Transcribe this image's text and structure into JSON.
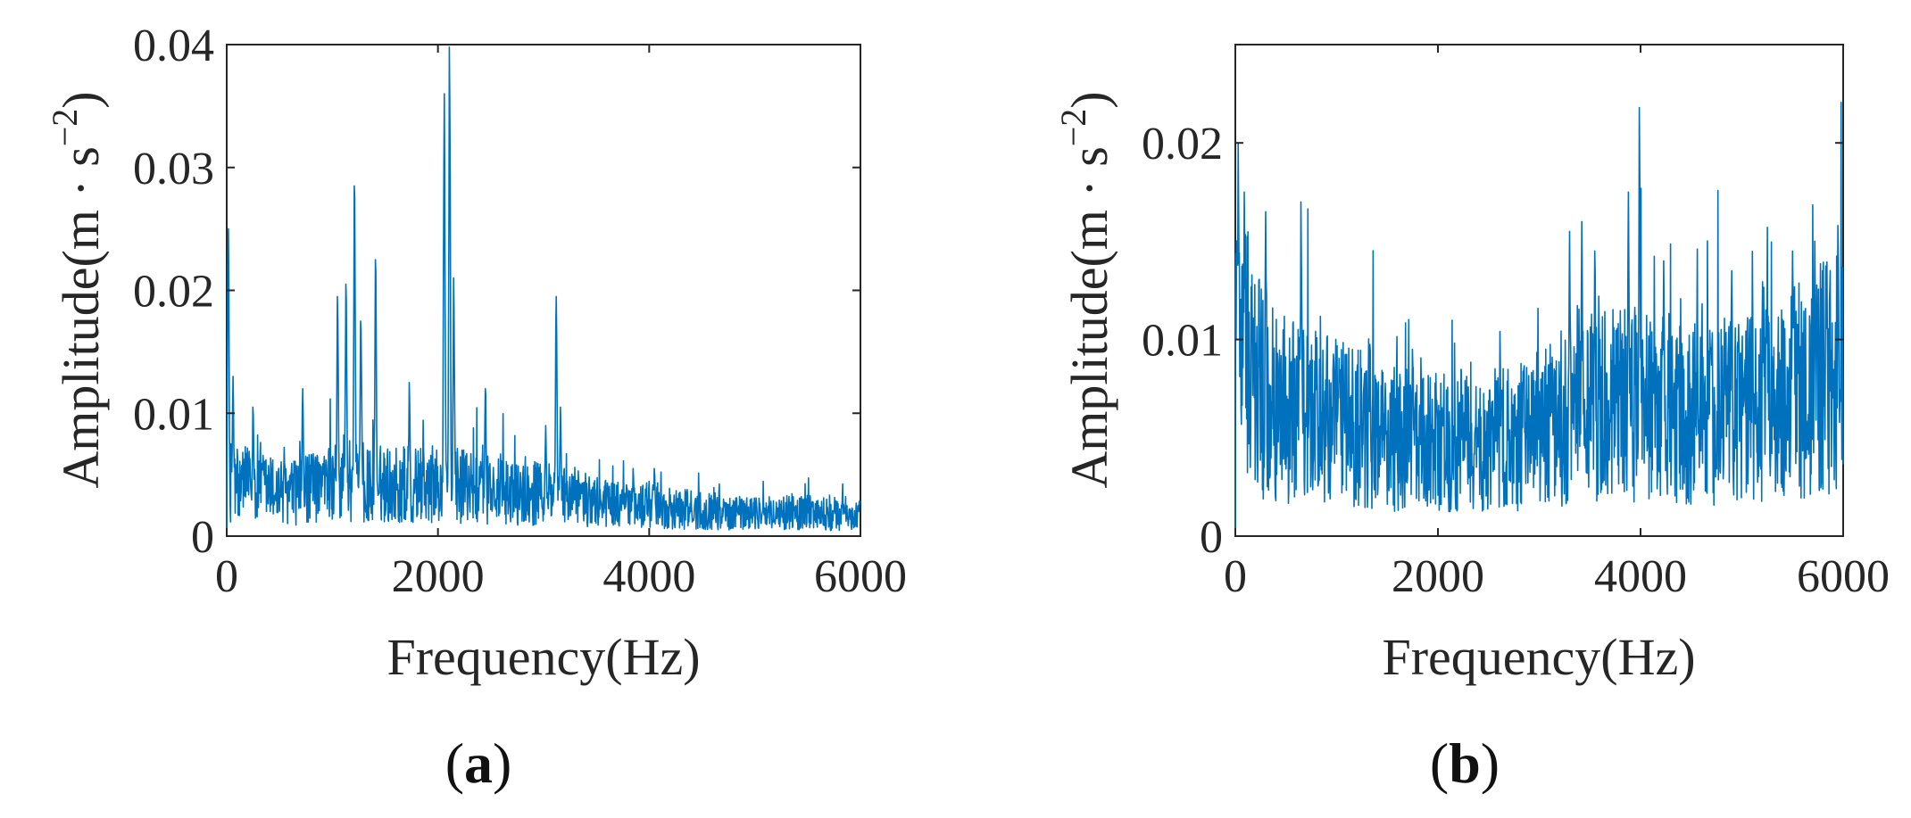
{
  "chart_data": [
    {
      "type": "line",
      "id": "a",
      "title": "",
      "xlabel": "Frequency(Hz)",
      "ylabel_main": "Amplitude(m · s",
      "ylabel_sup": "−2",
      "ylabel_close": ")",
      "xlim": [
        0,
        6000
      ],
      "ylim": [
        0,
        0.04
      ],
      "xticks": [
        0,
        2000,
        4000,
        6000
      ],
      "xtick_labels": [
        "0",
        "2000",
        "4000",
        "6000"
      ],
      "yticks": [
        0,
        0.01,
        0.02,
        0.03,
        0.04
      ],
      "ytick_labels": [
        "0",
        "0.01",
        "0.02",
        "0.03",
        "0.04"
      ],
      "subplot_label_open": "(",
      "subplot_label": "a",
      "subplot_label_close": ")",
      "color": "#0072BD",
      "baseline": [
        [
          0,
          0.0045
        ],
        [
          300,
          0.004
        ],
        [
          600,
          0.0035
        ],
        [
          900,
          0.004
        ],
        [
          1200,
          0.0045
        ],
        [
          1500,
          0.0042
        ],
        [
          1800,
          0.0042
        ],
        [
          2100,
          0.0042
        ],
        [
          2400,
          0.0038
        ],
        [
          2700,
          0.0035
        ],
        [
          3000,
          0.0035
        ],
        [
          3300,
          0.0032
        ],
        [
          3600,
          0.0026
        ],
        [
          4000,
          0.0024
        ],
        [
          4500,
          0.0021
        ],
        [
          5000,
          0.0019
        ],
        [
          5500,
          0.0019
        ],
        [
          6000,
          0.0017
        ]
      ],
      "peaks": [
        {
          "f": 15,
          "amp": 0.025
        },
        {
          "f": 60,
          "amp": 0.013
        },
        {
          "f": 250,
          "amp": 0.0105
        },
        {
          "f": 720,
          "amp": 0.012
        },
        {
          "f": 1050,
          "amp": 0.0195
        },
        {
          "f": 1130,
          "amp": 0.0205
        },
        {
          "f": 1210,
          "amp": 0.0285
        },
        {
          "f": 1270,
          "amp": 0.0175
        },
        {
          "f": 1410,
          "amp": 0.0225
        },
        {
          "f": 1730,
          "amp": 0.0125
        },
        {
          "f": 2060,
          "amp": 0.036
        },
        {
          "f": 2110,
          "amp": 0.0398
        },
        {
          "f": 2150,
          "amp": 0.021
        },
        {
          "f": 2450,
          "amp": 0.012
        },
        {
          "f": 3020,
          "amp": 0.009
        },
        {
          "f": 3120,
          "amp": 0.0195
        },
        {
          "f": 3160,
          "amp": 0.0105
        },
        {
          "f": 3850,
          "amp": 0.0055
        },
        {
          "f": 4050,
          "amp": 0.0055
        }
      ]
    },
    {
      "type": "line",
      "id": "b",
      "title": "",
      "xlabel": "Frequency(Hz)",
      "ylabel_main": "Amplitude(m · s",
      "ylabel_sup": "−2",
      "ylabel_close": ")",
      "xlim": [
        0,
        6000
      ],
      "ylim": [
        0,
        0.025
      ],
      "xticks": [
        0,
        2000,
        4000,
        6000
      ],
      "xtick_labels": [
        "0",
        "2000",
        "4000",
        "6000"
      ],
      "yticks": [
        0,
        0.01,
        0.02
      ],
      "ytick_labels": [
        "0",
        "0.01",
        "0.02"
      ],
      "subplot_label_open": "(",
      "subplot_label": "b",
      "subplot_label_close": ")",
      "color": "#0072BD",
      "baseline": [
        [
          0,
          0.011
        ],
        [
          150,
          0.0085
        ],
        [
          400,
          0.0065
        ],
        [
          800,
          0.006
        ],
        [
          1200,
          0.0055
        ],
        [
          1600,
          0.005
        ],
        [
          2000,
          0.0048
        ],
        [
          2400,
          0.0048
        ],
        [
          2800,
          0.005
        ],
        [
          3200,
          0.0058
        ],
        [
          3500,
          0.0065
        ],
        [
          3800,
          0.0068
        ],
        [
          4100,
          0.0065
        ],
        [
          4400,
          0.0062
        ],
        [
          4800,
          0.0062
        ],
        [
          5200,
          0.0065
        ],
        [
          5600,
          0.0075
        ],
        [
          6000,
          0.0085
        ]
      ],
      "peaks": [
        {
          "f": 30,
          "amp": 0.02
        },
        {
          "f": 90,
          "amp": 0.0175
        },
        {
          "f": 300,
          "amp": 0.0165
        },
        {
          "f": 650,
          "amp": 0.017
        },
        {
          "f": 1750,
          "amp": 0.0095
        },
        {
          "f": 3300,
          "amp": 0.0155
        },
        {
          "f": 3420,
          "amp": 0.016
        },
        {
          "f": 3550,
          "amp": 0.0145
        },
        {
          "f": 3880,
          "amp": 0.0175
        },
        {
          "f": 3990,
          "amp": 0.0218
        },
        {
          "f": 4230,
          "amp": 0.014
        },
        {
          "f": 4900,
          "amp": 0.0135
        },
        {
          "f": 5500,
          "amp": 0.0145
        },
        {
          "f": 5720,
          "amp": 0.015
        },
        {
          "f": 5950,
          "amp": 0.0158
        }
      ]
    }
  ]
}
